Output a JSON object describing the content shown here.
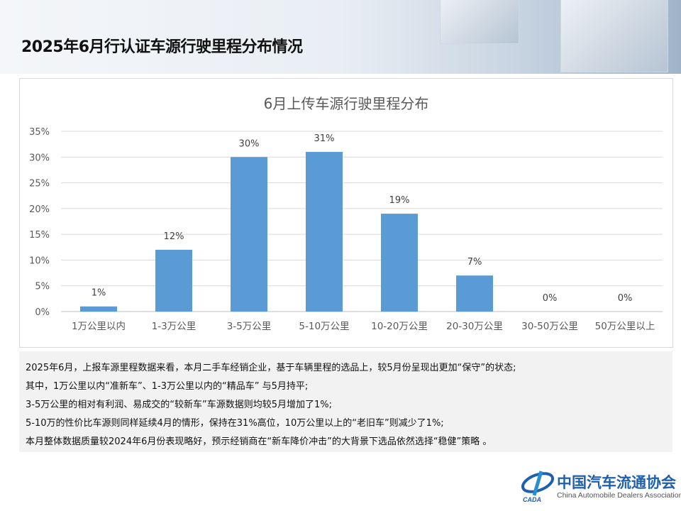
{
  "page_title": "2025年6月行认证车源行驶里程分布情况",
  "chart_data": {
    "type": "bar",
    "title": "6月上传车源行驶里程分布",
    "categories": [
      "1万公里以内",
      "1-3万公里",
      "3-5万公里",
      "5-10万公里",
      "10-20万公里",
      "20-30万公里",
      "30-50万公里",
      "50万公里以上"
    ],
    "values": [
      1,
      12,
      30,
      31,
      19,
      7,
      0,
      0
    ],
    "data_labels": [
      "1%",
      "12%",
      "30%",
      "31%",
      "19%",
      "7%",
      "0%",
      "0%"
    ],
    "yticks": [
      "0%",
      "5%",
      "10%",
      "15%",
      "20%",
      "25%",
      "30%",
      "35%"
    ],
    "ylim": [
      0,
      35
    ],
    "grid": true,
    "bar_color": "#5b9bd5"
  },
  "summary": [
    "2025年6月，上报车源里程数据来看，本月二手车经销企业，基于车辆里程的选品上，较5月份呈现出更加“保守”的状态;",
    "其中，1万公里以内“准新车”、1-3万公里以内的“精品车” 与5月持平;",
    "3-5万公里的相对有利润、易成交的“较新车”车源数据则均较5月增加了1%;",
    "5-10万的性价比车源则同样延续4月的情形，保持在31%高位，10万公里以上的“老旧车”则减少了1%;",
    "本月整体数据质量较2024年6月份表现略好，预示经销商在“新车降价冲击”的大背景下选品依然选择“稳健”策略 。"
  ],
  "logo": {
    "cn": "中国汽车流通协会",
    "en": "China Automobile Dealers Association",
    "abbr": "CADA"
  }
}
